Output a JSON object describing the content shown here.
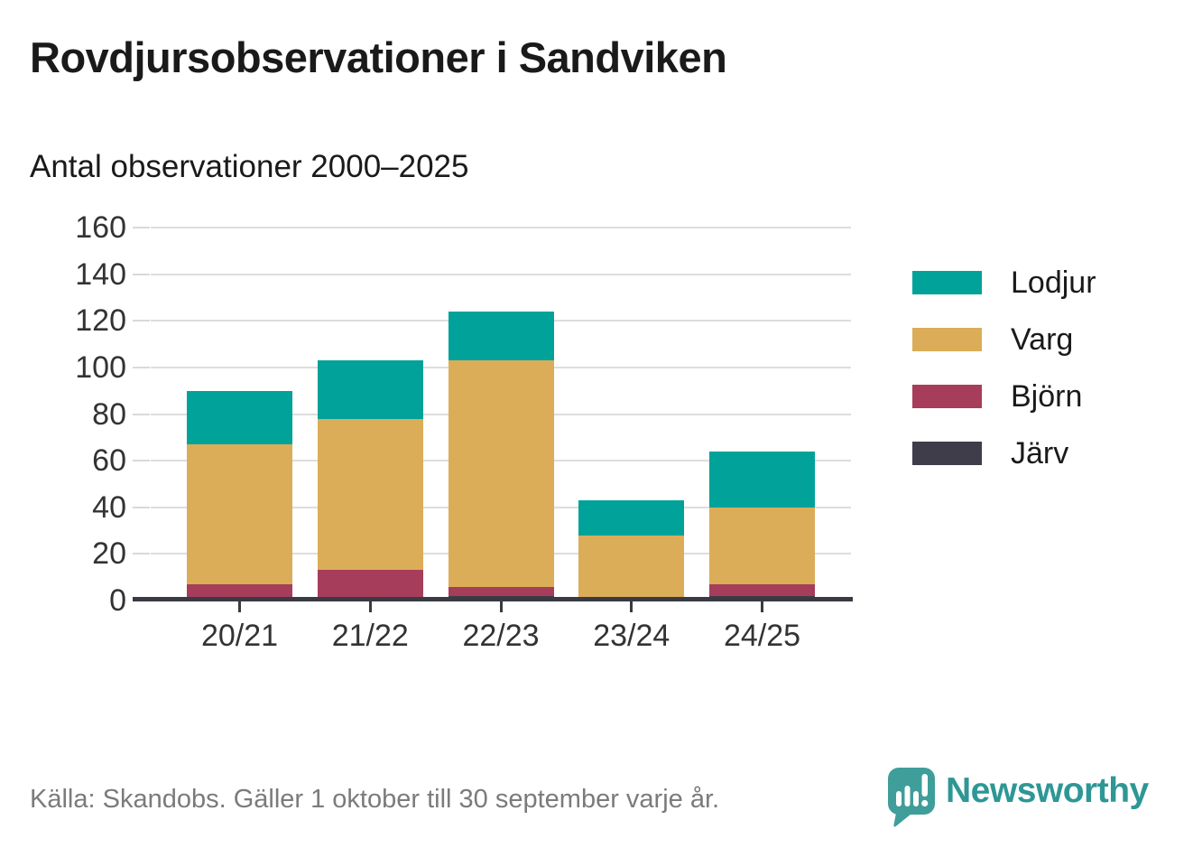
{
  "header": {
    "title": "Rovdjursobservationer i Sandviken",
    "subtitle": "Antal observationer 2000–2025"
  },
  "chart_data": {
    "type": "bar",
    "stacked": true,
    "title": "Rovdjursobservationer i Sandviken",
    "subtitle": "Antal observationer 2000–2025",
    "categories": [
      "20/21",
      "21/22",
      "22/23",
      "23/24",
      "24/25"
    ],
    "series": [
      {
        "name": "Järv",
        "color": "#3e3d49",
        "values": [
          0,
          0,
          2,
          0,
          2
        ]
      },
      {
        "name": "Björn",
        "color": "#a63d5b",
        "values": [
          7,
          13,
          4,
          1,
          5
        ]
      },
      {
        "name": "Varg",
        "color": "#dbad58",
        "values": [
          60,
          65,
          97,
          27,
          33
        ]
      },
      {
        "name": "Lodjur",
        "color": "#00a299",
        "values": [
          23,
          25,
          21,
          15,
          24
        ]
      }
    ],
    "stack_order_note": "series listed bottom-to-top",
    "totals": [
      90,
      103,
      124,
      43,
      64
    ],
    "xlabel": "",
    "ylabel": "",
    "ylim": [
      0,
      160
    ],
    "yticks": [
      0,
      20,
      40,
      60,
      80,
      100,
      120,
      140,
      160
    ],
    "grid": true,
    "legend_position": "right",
    "legend_order": [
      "Lodjur",
      "Varg",
      "Björn",
      "Järv"
    ]
  },
  "footer": {
    "source": "Källa: Skandobs. Gäller 1 oktober till 30 september varje år.",
    "brand": "Newsworthy",
    "brand_color": "#2e9795",
    "brand_icon": "newsworthy-speech-bubble-bar-chart"
  }
}
